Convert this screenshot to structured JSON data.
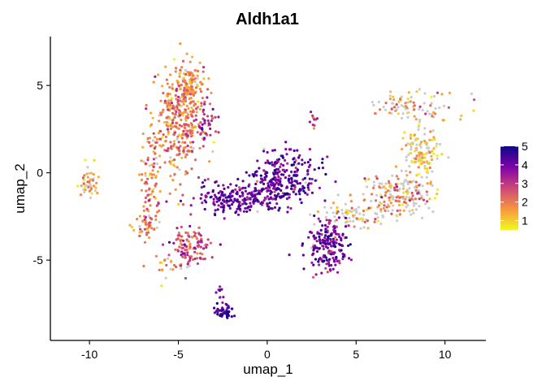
{
  "chart_data": {
    "type": "scatter",
    "title": "Aldh1a1",
    "xlabel": "umap_1",
    "ylabel": "umap_2",
    "xlim": [
      -12.2,
      12.3
    ],
    "ylim": [
      -9.6,
      7.8
    ],
    "xticks": [
      -10,
      -5,
      0,
      5,
      10
    ],
    "xtick_labels": [
      "-10",
      "-5",
      "0",
      "5",
      "10"
    ],
    "yticks": [
      -5,
      0,
      5
    ],
    "ytick_labels": [
      "-5",
      "0",
      "5"
    ],
    "grid": false,
    "color_scale": {
      "name": "plasma (reversed)",
      "min": 0.5,
      "max": 5,
      "low_color": "#f0f921",
      "mid_colors": [
        "#f89540",
        "#cc4778",
        "#7e03a8"
      ],
      "high_color": "#0d0887",
      "zero_color": "#cccccc",
      "ticks": [
        5,
        4,
        3,
        2,
        1
      ],
      "tick_labels": [
        "5",
        "4",
        "3",
        "2",
        "1"
      ],
      "position": "right"
    },
    "clusters": [
      {
        "name": "upper-left cluster",
        "cx": -4.9,
        "cy": 3.0,
        "sx": 0.7,
        "sy": 1.6,
        "n": 360,
        "mean": 1.9,
        "sd": 0.6,
        "zero_frac": 0.04
      },
      {
        "name": "upper-left top lobe",
        "cx": -4.3,
        "cy": 5.0,
        "sx": 0.4,
        "sy": 0.6,
        "n": 90,
        "mean": 1.6,
        "sd": 0.5,
        "zero_frac": 0.03
      },
      {
        "name": "left stream",
        "cx": -6.6,
        "cy": -0.5,
        "sx": 0.3,
        "sy": 1.3,
        "n": 90,
        "mean": 1.7,
        "sd": 0.6,
        "zero_frac": 0.1
      },
      {
        "name": "lower-left arc",
        "cx": -6.8,
        "cy": -3.0,
        "sx": 0.3,
        "sy": 0.5,
        "n": 40,
        "mean": 1.9,
        "sd": 0.6,
        "zero_frac": 0.15
      },
      {
        "name": "lower-left cluster",
        "cx": -4.3,
        "cy": -4.2,
        "sx": 0.55,
        "sy": 0.55,
        "n": 120,
        "mean": 2.7,
        "sd": 0.7,
        "zero_frac": 0.05
      },
      {
        "name": "lower-left tail",
        "cx": -5.6,
        "cy": -5.4,
        "sx": 0.4,
        "sy": 0.4,
        "n": 20,
        "mean": 1.5,
        "sd": 0.4,
        "zero_frac": 0.3
      },
      {
        "name": "far-left islet",
        "cx": -10.1,
        "cy": -0.5,
        "sx": 0.3,
        "sy": 0.5,
        "n": 45,
        "mean": 1.5,
        "sd": 0.6,
        "zero_frac": 0.35
      },
      {
        "name": "right of upper-left",
        "cx": -3.4,
        "cy": 2.6,
        "sx": 0.3,
        "sy": 0.7,
        "n": 40,
        "mean": 3.0,
        "sd": 0.5,
        "zero_frac": 0.02
      },
      {
        "name": "central bridge",
        "cx": -1.5,
        "cy": -1.4,
        "sx": 1.3,
        "sy": 0.45,
        "n": 230,
        "mean": 4.0,
        "sd": 0.5,
        "zero_frac": 0.01
      },
      {
        "name": "central-right cluster",
        "cx": 1.0,
        "cy": -0.3,
        "sx": 1.0,
        "sy": 0.8,
        "n": 260,
        "mean": 4.0,
        "sd": 0.55,
        "zero_frac": 0.02
      },
      {
        "name": "lower-right cluster",
        "cx": 3.4,
        "cy": -4.1,
        "sx": 0.55,
        "sy": 0.75,
        "n": 200,
        "mean": 3.8,
        "sd": 0.6,
        "zero_frac": 0.03
      },
      {
        "name": "right bridge",
        "cx": 5.0,
        "cy": -2.4,
        "sx": 0.9,
        "sy": 0.4,
        "n": 90,
        "mean": 1.6,
        "sd": 0.6,
        "zero_frac": 0.6
      },
      {
        "name": "right arc",
        "cx": 7.6,
        "cy": -1.2,
        "sx": 0.9,
        "sy": 0.5,
        "n": 170,
        "mean": 1.8,
        "sd": 0.7,
        "zero_frac": 0.4
      },
      {
        "name": "right upper region",
        "cx": 8.6,
        "cy": 1.2,
        "sx": 0.5,
        "sy": 0.8,
        "n": 140,
        "mean": 1.1,
        "sd": 0.5,
        "zero_frac": 0.35
      },
      {
        "name": "top-right arc",
        "cx": 8.2,
        "cy": 3.8,
        "sx": 1.3,
        "sy": 0.4,
        "n": 90,
        "mean": 1.8,
        "sd": 0.7,
        "zero_frac": 0.4
      },
      {
        "name": "bottom islet",
        "cx": -2.4,
        "cy": -8.0,
        "sx": 0.3,
        "sy": 0.18,
        "n": 45,
        "mean": 4.5,
        "sd": 0.3,
        "zero_frac": 0.0
      },
      {
        "name": "bottom islet stem",
        "cx": -2.7,
        "cy": -6.9,
        "sx": 0.12,
        "sy": 0.5,
        "n": 10,
        "mean": 3.5,
        "sd": 0.5,
        "zero_frac": 0.0
      },
      {
        "name": "small isolate",
        "cx": 2.6,
        "cy": 2.9,
        "sx": 0.08,
        "sy": 0.3,
        "n": 10,
        "mean": 3.0,
        "sd": 0.6,
        "zero_frac": 0.0
      }
    ]
  }
}
